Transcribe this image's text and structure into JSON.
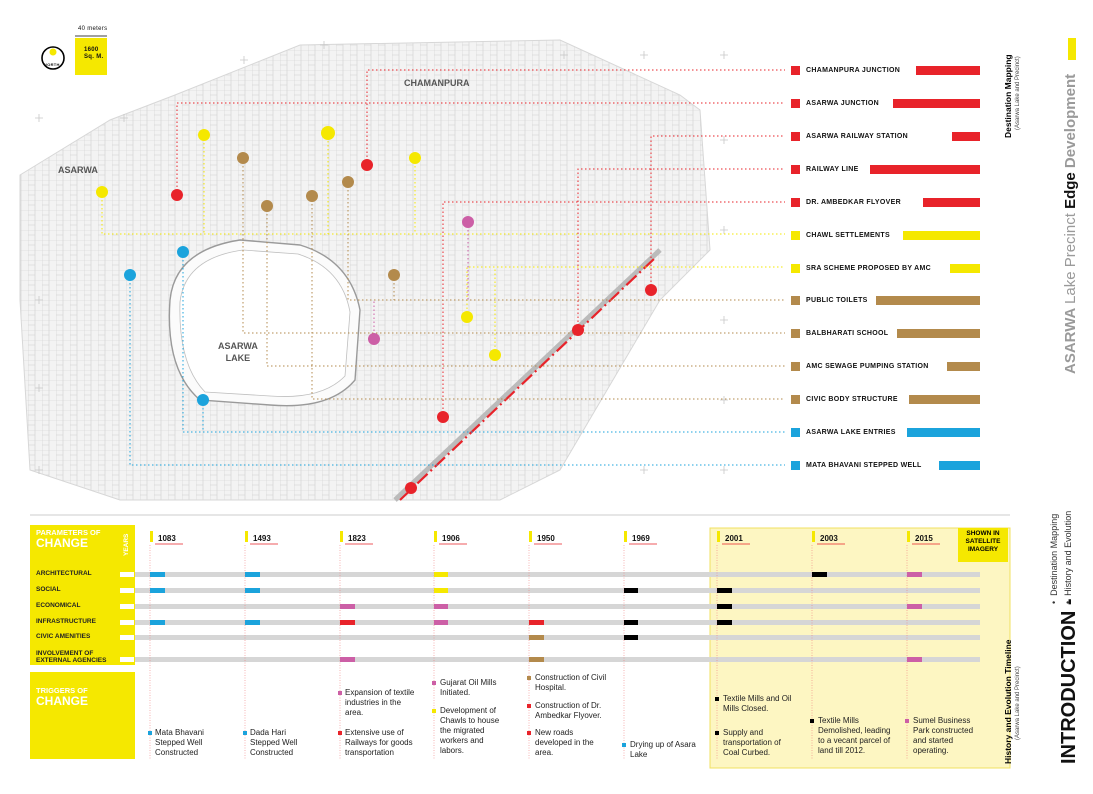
{
  "scale": {
    "meters": "40 meters",
    "north": "NORTH",
    "area": "1600\nSq. M."
  },
  "places": {
    "chamanpura": "CHAMANPURA",
    "asarwa": "ASARWA",
    "lake": "ASARWA\nLAKE"
  },
  "destinations": [
    {
      "label": "CHAMANPURA JUNCTION",
      "color": "#e8232a"
    },
    {
      "label": "ASARWA JUNCTION",
      "color": "#e8232a"
    },
    {
      "label": "ASARWA RAILWAY STATION",
      "color": "#e8232a"
    },
    {
      "label": "RAILWAY LINE",
      "color": "#e8232a"
    },
    {
      "label": "DR. AMBEDKAR FLYOVER",
      "color": "#e8232a"
    },
    {
      "label": "CHAWL SETTLEMENTS",
      "color": "#f5e800"
    },
    {
      "label": "SRA SCHEME PROPOSED BY AMC",
      "color": "#f5e800"
    },
    {
      "label": "PUBLIC TOILETS",
      "color": "#b38a4c"
    },
    {
      "label": "BALBHARATI SCHOOL",
      "color": "#b38a4c"
    },
    {
      "label": "AMC SEWAGE PUMPING STATION",
      "color": "#b38a4c"
    },
    {
      "label": "CIVIC BODY STRUCTURE",
      "color": "#b38a4c"
    },
    {
      "label": "ASARWA LAKE ENTRIES",
      "color": "#1ba3dc"
    },
    {
      "label": "MATA BHAVANI STEPPED WELL",
      "color": "#1ba3dc"
    }
  ],
  "side": {
    "dest_title": "Destination Mapping",
    "dest_sub": "(Asarwa Lake and Precinct)",
    "hist_title": "History and Evolution Timeline",
    "hist_sub": "(Asarwa Lake and Precinct)",
    "title_a": "ASARWA",
    "title_b": "Lake Precinct",
    "title_c": "Edge",
    "title_d": "Development",
    "intro": "INTRODUCTION -",
    "item1": "Destination Mapping",
    "item2": "History and Evolution"
  },
  "timeline": {
    "param_title_small": "PARAMETERS OF",
    "param_title_big": "CHANGE",
    "years_label": "YEARS",
    "trig_title_small": "TRIGGERS OF",
    "trig_title_big": "CHANGE",
    "satellite": "SHOWN IN\nSATELLITE\nIMAGERY",
    "years": [
      "1083",
      "1493",
      "1823",
      "1906",
      "1950",
      "1969",
      "2001",
      "2003",
      "2015"
    ],
    "parameters": [
      "ARCHITECTURAL",
      "SOCIAL",
      "ECONOMICAL",
      "INFRASTRUCTURE",
      "CIVIC AMENITIES",
      "INVOLVEMENT OF\nEXTERNAL AGENCIES"
    ],
    "triggers": [
      {
        "text": "Mata Bhavani\nStepped Well\nConstructed",
        "color": "#1ba3dc"
      },
      {
        "text": "Dada Hari\nStepped Well\nConstructed",
        "color": "#1ba3dc"
      },
      {
        "text": "Expansion of textile\nindustries in the\narea.",
        "color": "#cc5fa6"
      },
      {
        "text": "Extensive use of\nRailways for goods\ntransportation",
        "color": "#e8232a"
      },
      {
        "text": "Gujarat Oil Mills\nInitiated.",
        "color": "#cc5fa6"
      },
      {
        "text": "Development of\nChawls to house\nthe migrated\nworkers and\nlabors.",
        "color": "#f5e800"
      },
      {
        "text": "Construction of Civil\nHospital.",
        "color": "#b38a4c"
      },
      {
        "text": "Construction of Dr.\nAmbedkar Flyover.",
        "color": "#e8232a"
      },
      {
        "text": "New roads\ndeveloped in the\narea.",
        "color": "#e8232a"
      },
      {
        "text": "Drying up of Asara\nLake",
        "color": "#1ba3dc"
      },
      {
        "text": "Textile Mills and Oil\nMills Closed.",
        "color": "#000000"
      },
      {
        "text": "Supply and\ntransportation of\nCoal Curbed.",
        "color": "#000000"
      },
      {
        "text": "Textile Mills\nDemolished, leading\nto a vecant parcel of\nland till 2012.",
        "color": "#000000"
      },
      {
        "text": "Sumel Business\nPark constructed\nand started\noperating.",
        "color": "#cc5fa6"
      }
    ]
  }
}
